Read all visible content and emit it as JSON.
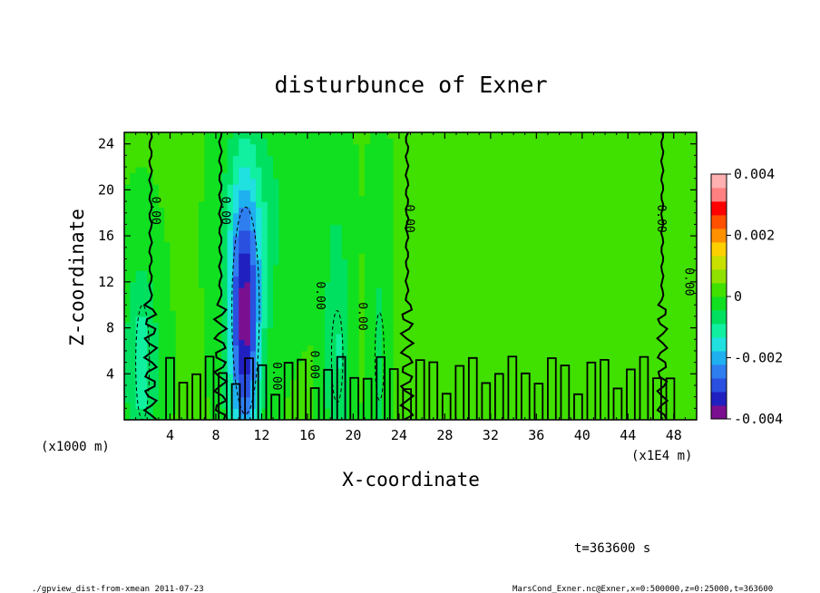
{
  "chart_data": {
    "type": "heatmap",
    "title": "disturbunce of Exner",
    "xlabel": "X-coordinate",
    "ylabel": "Z-coordinate",
    "x_unit_left": "(x1000 m)",
    "x_unit_right": "(x1E4 m)",
    "xlim": [
      0,
      50
    ],
    "ylim": [
      0,
      25
    ],
    "x_ticks": [
      4,
      8,
      12,
      16,
      20,
      24,
      28,
      32,
      36,
      40,
      44,
      48
    ],
    "y_ticks": [
      4,
      8,
      12,
      16,
      20,
      24
    ],
    "colorbar": {
      "min": -0.004,
      "max": 0.004,
      "tick_labels": [
        "0.004",
        "0.002",
        "0",
        "-0.002",
        "-0.004"
      ],
      "tick_values": [
        0.004,
        0.002,
        0,
        -0.002,
        -0.004
      ],
      "colors": [
        "#7a1090",
        "#2020c0",
        "#2a50e0",
        "#2f7ef0",
        "#1fb0f0",
        "#20e0e0",
        "#10f0a0",
        "#00e060",
        "#10e020",
        "#40e000",
        "#90e000",
        "#c8e000",
        "#ffd000",
        "#ff9000",
        "#ff5000",
        "#ff0000",
        "#ff8080",
        "#ffb0b0"
      ]
    },
    "contour_labels": [
      {
        "text": "0.00",
        "x": 2.4,
        "z": 18.2
      },
      {
        "text": "0.00",
        "x": 8.5,
        "z": 18.2
      },
      {
        "text": "0.00",
        "x": 24.6,
        "z": 17.5
      },
      {
        "text": "0.00",
        "x": 46.6,
        "z": 17.5
      },
      {
        "text": "0.00",
        "x": 49.0,
        "z": 12.0
      },
      {
        "text": "0.00",
        "x": 16.8,
        "z": 10.8
      },
      {
        "text": "0.00",
        "x": 20.5,
        "z": 9.0
      },
      {
        "text": "0.00",
        "x": 13.0,
        "z": 3.8
      },
      {
        "text": "0.00",
        "x": 16.3,
        "z": 4.8
      }
    ],
    "anomalies": [
      {
        "x": 10.5,
        "z": 7.0,
        "sx": 0.9,
        "sz": 8.0,
        "value": -0.0028
      },
      {
        "x": 10.5,
        "z": 14.0,
        "sx": 1.3,
        "sz": 8.0,
        "value": -0.0013
      },
      {
        "x": 1.5,
        "z": 5.0,
        "sx": 1.0,
        "sz": 6.0,
        "value": -0.0012
      },
      {
        "x": 18.6,
        "z": 6.0,
        "sx": 0.8,
        "sz": 9.0,
        "value": -0.001
      },
      {
        "x": 22.3,
        "z": 6.0,
        "sx": 0.7,
        "sz": 8.0,
        "value": -0.0007
      },
      {
        "x": 13.5,
        "z": 18.0,
        "sx": 2.2,
        "sz": 7.0,
        "value": -0.0004
      },
      {
        "x": 34.0,
        "z": 7.0,
        "sx": 9.0,
        "sz": 5.0,
        "value": 0.0003
      }
    ]
  },
  "annotations": {
    "time_label": "t=363600 s",
    "footer_left": "./gpview_dist-from-xmean  2011-07-23",
    "footer_right": "MarsCond_Exner.nc@Exner,x=0:500000,z=0:25000,t=363600"
  }
}
